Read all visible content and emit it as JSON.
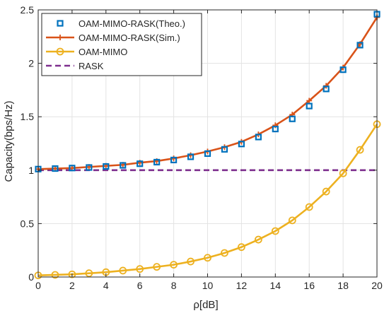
{
  "chart_data": {
    "type": "line",
    "title": "",
    "xlabel": "ρ[dB]",
    "ylabel": "Capacity(bps/Hz)",
    "xlim": [
      0,
      20
    ],
    "ylim": [
      0,
      2.5
    ],
    "xticks": [
      0,
      2,
      4,
      6,
      8,
      10,
      12,
      14,
      16,
      18,
      20
    ],
    "yticks": [
      0,
      0.5,
      1,
      1.5,
      2,
      2.5
    ],
    "xtick_labels": [
      "0",
      "2",
      "4",
      "6",
      "8",
      "10",
      "12",
      "14",
      "16",
      "18",
      "20"
    ],
    "ytick_labels": [
      "0",
      "0.5",
      "1",
      "1.5",
      "2",
      "2.5"
    ],
    "grid": true,
    "legend_position": "top-left",
    "x": [
      0,
      1,
      2,
      3,
      4,
      5,
      6,
      7,
      8,
      9,
      10,
      11,
      12,
      13,
      14,
      15,
      16,
      17,
      18,
      19,
      20
    ],
    "series": [
      {
        "name": "OAM-MIMO-RASK(Theo.)",
        "color": "#0072BD",
        "style": "markers",
        "marker": "square",
        "values": [
          1.01,
          1.015,
          1.02,
          1.025,
          1.035,
          1.045,
          1.06,
          1.075,
          1.095,
          1.125,
          1.155,
          1.195,
          1.245,
          1.31,
          1.385,
          1.48,
          1.6,
          1.76,
          1.94,
          2.17,
          2.46
        ]
      },
      {
        "name": "OAM-MIMO-RASK(Sim.)",
        "color": "#D95319",
        "style": "line",
        "marker": "plus",
        "values": [
          1.01,
          1.015,
          1.02,
          1.03,
          1.04,
          1.05,
          1.07,
          1.085,
          1.11,
          1.14,
          1.175,
          1.215,
          1.265,
          1.335,
          1.42,
          1.52,
          1.65,
          1.79,
          1.96,
          2.18,
          2.43
        ]
      },
      {
        "name": "OAM-MIMO",
        "color": "#EDB120",
        "style": "line",
        "marker": "circle",
        "values": [
          0.015,
          0.02,
          0.025,
          0.035,
          0.045,
          0.06,
          0.075,
          0.095,
          0.115,
          0.145,
          0.18,
          0.225,
          0.28,
          0.35,
          0.43,
          0.53,
          0.655,
          0.8,
          0.97,
          1.19,
          1.43
        ]
      },
      {
        "name": "RASK",
        "color": "#7E2F8E",
        "style": "dashed",
        "marker": "none",
        "values": [
          1,
          1,
          1,
          1,
          1,
          1,
          1,
          1,
          1,
          1,
          1,
          1,
          1,
          1,
          1,
          1,
          1,
          1,
          1,
          1,
          1
        ]
      }
    ]
  }
}
